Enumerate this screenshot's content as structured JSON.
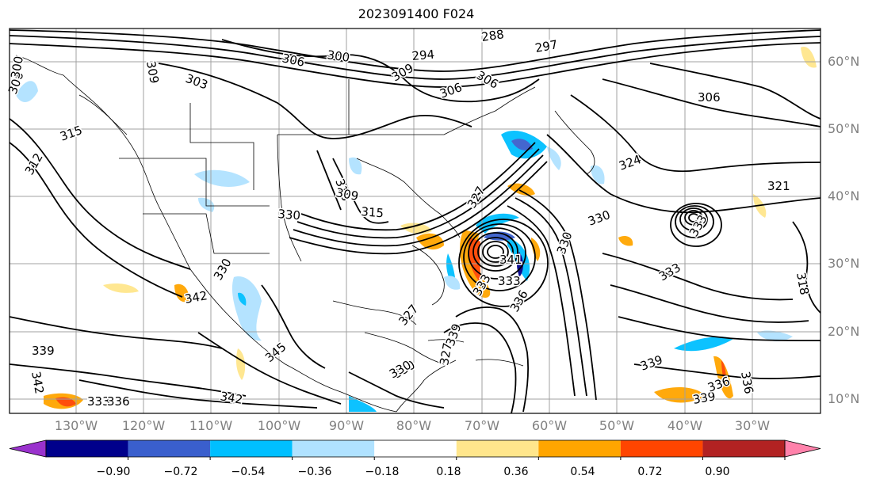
{
  "title": "2023091400 F024",
  "lat_labels": [
    "60°N",
    "50°N",
    "40°N",
    "30°N",
    "20°N",
    "10°N"
  ],
  "lon_labels": [
    "130°W",
    "120°W",
    "110°W",
    "100°W",
    "90°W",
    "80°W",
    "70°W",
    "60°W",
    "50°W",
    "40°W",
    "30°W"
  ],
  "colorbar": {
    "ticks": [
      "−0.90",
      "−0.72",
      "−0.54",
      "−0.36",
      "−0.18",
      "0.18",
      "0.36",
      "0.54",
      "0.72",
      "0.90"
    ],
    "colors": [
      "#9a32cd",
      "#00008b",
      "#3a5fcd",
      "#00bfff",
      "#b0e2ff",
      "#ffffff",
      "#ffe68c",
      "#ffa500",
      "#ff4500",
      "#b22222",
      "#ff82ab"
    ]
  },
  "contour_labels": [
    "288",
    "294",
    "297",
    "300",
    "306",
    "309",
    "306",
    "309",
    "306",
    "306",
    "303",
    "300",
    "306",
    "315",
    "312",
    "324",
    "321",
    "330",
    "318",
    "315",
    "309",
    "330",
    "327",
    "330",
    "333",
    "330",
    "333",
    "341",
    "333",
    "339",
    "330",
    "318",
    "333",
    "342",
    "345",
    "327",
    "330",
    "327",
    "336",
    "339",
    "339",
    "342",
    "336",
    "339",
    "342",
    "336",
    "333",
    "336"
  ]
}
